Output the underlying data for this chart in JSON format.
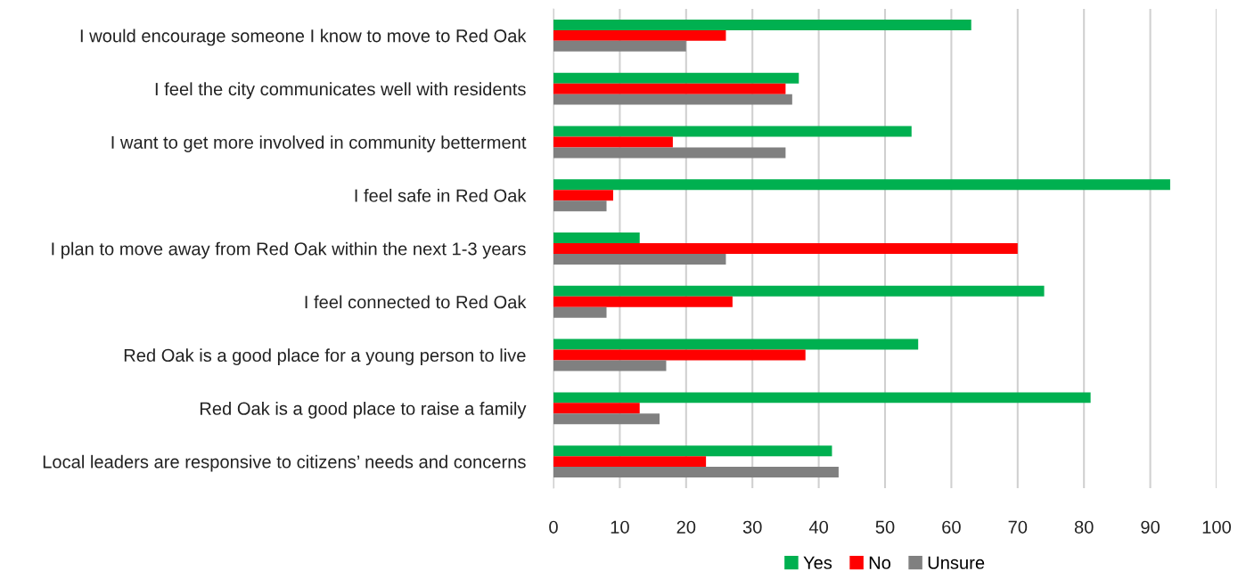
{
  "chart_data": {
    "type": "bar",
    "orientation": "horizontal",
    "categories": [
      "I would encourage someone I know to move to Red Oak",
      "I feel the city communicates well with residents",
      "I want to get more involved in community betterment",
      "I feel safe in Red Oak",
      "I plan to move away from Red Oak within the next 1-3 years",
      "I feel connected to Red Oak",
      "Red Oak is a good place for a young person to live",
      "Red Oak is a good place to raise a family",
      "Local leaders are responsive to citizens’ needs and concerns"
    ],
    "series": [
      {
        "name": "Yes",
        "color": "#00b050",
        "values": [
          63,
          37,
          54,
          93,
          13,
          74,
          55,
          81,
          42
        ]
      },
      {
        "name": "No",
        "color": "#ff0000",
        "values": [
          26,
          35,
          18,
          9,
          70,
          27,
          38,
          13,
          23
        ]
      },
      {
        "name": "Unsure",
        "color": "#808080",
        "values": [
          20,
          36,
          35,
          8,
          26,
          8,
          17,
          16,
          43
        ]
      }
    ],
    "xlim": [
      0,
      100
    ],
    "xticks": [
      0,
      10,
      20,
      30,
      40,
      50,
      60,
      70,
      80,
      90,
      100
    ],
    "grid": "x",
    "legend": "bottom"
  }
}
